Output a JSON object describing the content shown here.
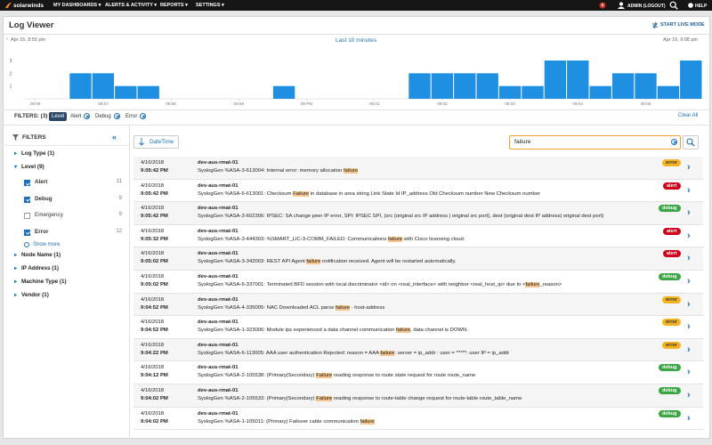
{
  "nav": {
    "logo": "solarwinds",
    "menus": [
      "MY DASHBOARDS",
      "ALERTS & ACTIVITY",
      "REPORTS",
      "SETTINGS"
    ],
    "user": "ADMIN (LOGOUT)",
    "help": "HELP"
  },
  "header": {
    "title": "Log Viewer",
    "live": "START LIVE MODE",
    "start": "Apr 16, 8:55 pm",
    "range": "Last 10 minutes",
    "end": "Apr 16, 9:05 pm"
  },
  "chart_data": {
    "type": "bar",
    "categories": [
      "08:56",
      null,
      null,
      "08:57",
      null,
      null,
      "08:58",
      null,
      null,
      "08:59",
      null,
      null,
      "09 PM",
      null,
      null,
      "09:01",
      null,
      null,
      "09:02",
      null,
      null,
      "09:03",
      null,
      null,
      "09:04",
      null,
      null,
      "09:05",
      null,
      null
    ],
    "values": [
      0,
      0,
      2,
      2,
      1,
      1,
      0,
      0,
      0,
      0,
      0,
      1,
      0,
      0,
      0,
      0,
      0,
      2,
      2,
      2,
      2,
      1,
      1,
      3,
      3,
      1,
      2,
      2,
      1,
      3
    ],
    "color": "#1e8fe1",
    "ylim": [
      0,
      3
    ],
    "yticks": [
      1,
      2,
      3
    ],
    "grid": false
  },
  "active_filters": {
    "label": "FILTERS: (3)",
    "group": "Level",
    "chips": [
      "Alert",
      "Debug",
      "Error"
    ],
    "clear": "Clear All"
  },
  "sidebar": {
    "title": "FILTERS",
    "groups": [
      {
        "label": "Log Type (1)",
        "expanded": false
      },
      {
        "label": "Level (9)",
        "expanded": true,
        "items": [
          {
            "label": "Alert",
            "count": 11,
            "checked": true
          },
          {
            "label": "Debug",
            "count": 9,
            "checked": true
          },
          {
            "label": "Emergency",
            "count": 9,
            "checked": false
          },
          {
            "label": "Error",
            "count": 12,
            "checked": true
          }
        ],
        "more": "Show more"
      },
      {
        "label": "Node Name (1)",
        "expanded": false
      },
      {
        "label": "IP Address (1)",
        "expanded": false
      },
      {
        "label": "Machine Type (1)",
        "expanded": false
      },
      {
        "label": "Vendor (1)",
        "expanded": false
      }
    ]
  },
  "toolbar": {
    "sort": "DateTime",
    "search": "failure"
  },
  "logs": [
    {
      "date": "4/16/2018",
      "time": "9:05:42 PM",
      "node": "dev-aus-rmat-01",
      "message": [
        "SyslogGen %ASA-3-613004: Internal error: memory allocation ",
        "failure"
      ],
      "level": "error"
    },
    {
      "date": "4/16/2018",
      "time": "9:05:42 PM",
      "node": "dev-aus-rmat-01",
      "message": [
        "SyslogGen %ASA-6-613001: Checksum ",
        "Failure",
        " in database in area string Link State Id IP_address Old Checksum number New Checksum number"
      ],
      "level": "alert"
    },
    {
      "date": "4/16/2018",
      "time": "9:05:42 PM",
      "node": "dev-aus-rmat-01",
      "message": [
        "SyslogGen %ASA-3-602306: IPSEC: SA change peer IP error, SPI: IPSEC SPI, (src {original src IP address | original src port}, dest {original dest IP address| original dest port}"
      ],
      "level": "debug"
    },
    {
      "date": "4/16/2018",
      "time": "9:05:32 PM",
      "node": "dev-aus-rmat-01",
      "message": [
        "SyslogGen %ASA-3-444303: %SMART_LIC-3-COMM_FAILED: Communications ",
        "failure",
        " with Cisco licensing cloud."
      ],
      "level": "alert"
    },
    {
      "date": "4/16/2018",
      "time": "9:05:02 PM",
      "node": "dev-aus-rmat-01",
      "message": [
        "SyslogGen %ASA-3-342003: REST API Agent ",
        "failure",
        " notification received. Agent will be restarted automatically."
      ],
      "level": "alert"
    },
    {
      "date": "4/16/2018",
      "time": "9:05:02 PM",
      "node": "dev-aus-rmat-01",
      "message": [
        "SyslogGen %ASA-6-337001: Terminated BFD session with local discriminator <id> on <real_interface> with neighbor <real_host_ip> due to <",
        "failure",
        "_reason>"
      ],
      "level": "debug"
    },
    {
      "date": "4/16/2018",
      "time": "9:04:52 PM",
      "node": "dev-aus-rmat-01",
      "message": [
        "SyslogGen %ASA-4-335005: NAC Downloaded ACL parse ",
        "failure",
        " - host-address"
      ],
      "level": "error"
    },
    {
      "date": "4/16/2018",
      "time": "9:04:52 PM",
      "node": "dev-aus-rmat-01",
      "message": [
        "SyslogGen %ASA-1-323006: Module ips experienced a data channel communication ",
        "failure",
        ", data channel is DOWN."
      ],
      "level": "error"
    },
    {
      "date": "4/16/2018",
      "time": "9:04:22 PM",
      "node": "dev-aus-rmat-01",
      "message": [
        "SyslogGen %ASA-6-113005: AAA user authentication Rejected: reason = AAA ",
        "failure",
        ": server = ip_addr : user = *****: user IP = ip_addr"
      ],
      "level": "error"
    },
    {
      "date": "4/16/2018",
      "time": "9:04:12 PM",
      "node": "dev-aus-rmat-01",
      "message": [
        "SyslogGen %ASA-2-105538: (Primary|Secondary) ",
        "Failure",
        " reading response to route state request for route route_name"
      ],
      "level": "debug"
    },
    {
      "date": "4/16/2018",
      "time": "9:04:02 PM",
      "node": "dev-aus-rmat-01",
      "message": [
        "SyslogGen %ASA-2-105533: (Primary|Secondary) ",
        "Failure",
        " reading response to route-table change request for route-table route_table_name"
      ],
      "level": "debug"
    },
    {
      "date": "4/16/2018",
      "time": "9:04:02 PM",
      "node": "dev-aus-rmat-01",
      "message": [
        "SyslogGen %ASA-1-105011: (Primary) Failover cable communication ",
        "failure"
      ],
      "level": "debug"
    }
  ]
}
